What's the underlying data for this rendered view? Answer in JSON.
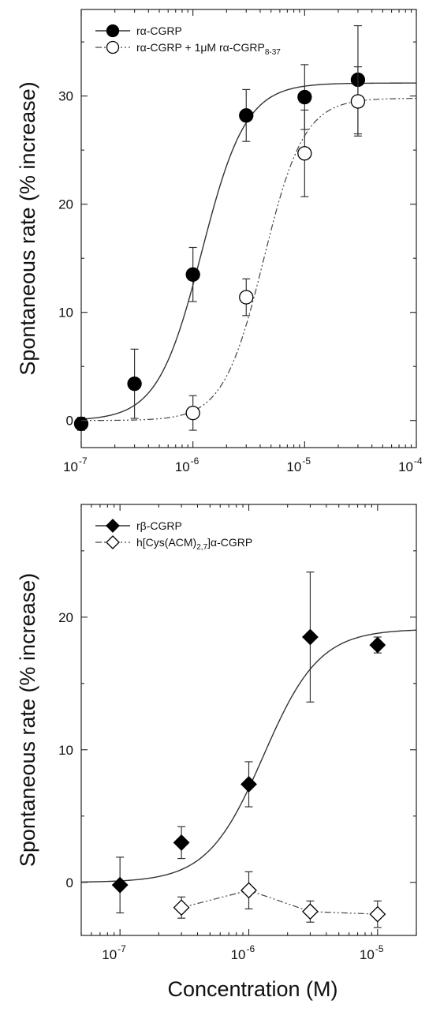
{
  "chart_data": [
    {
      "type": "scatter",
      "title": "",
      "xlabel": "",
      "ylabel": "Spontaneous rate (% increase)",
      "x_scale": "log",
      "xlim": [
        1e-07,
        0.0001
      ],
      "ylim": [
        -2.5,
        38
      ],
      "x_ticks": [
        {
          "value": 1e-07,
          "base": "10",
          "exp": "-7"
        },
        {
          "value": 1e-06,
          "base": "10",
          "exp": "-6"
        },
        {
          "value": 1e-05,
          "base": "10",
          "exp": "-5"
        },
        {
          "value": 0.0001,
          "base": "10",
          "exp": "-4"
        }
      ],
      "y_ticks": [
        0,
        10,
        20,
        30
      ],
      "legend": {
        "position": "top-left",
        "entries": [
          {
            "label": "rα-CGRP",
            "marker": "filled-circle"
          },
          {
            "label": "rα-CGRP + 1μM rα-CGRP",
            "subscript": "8-37",
            "marker": "open-circle"
          }
        ]
      },
      "series": [
        {
          "name": "rα-CGRP",
          "marker": "filled-circle",
          "fit_line": "solid",
          "x": [
            1e-07,
            3e-07,
            1e-06,
            3e-06,
            1e-05,
            3e-05
          ],
          "y": [
            -0.3,
            3.4,
            13.5,
            28.2,
            29.9,
            31.5
          ],
          "err": [
            0.6,
            3.2,
            2.5,
            2.4,
            3.0,
            5.0
          ],
          "fit": {
            "bottom": 0,
            "top": 31.2,
            "ec50": 1.2e-06,
            "hill": 2.2
          }
        },
        {
          "name": "rα-CGRP + 1μM rα-CGRP8-37",
          "marker": "open-circle",
          "fit_line": "dash-dot-dot",
          "x": [
            1e-06,
            3e-06,
            1e-05,
            3e-05
          ],
          "y": [
            0.7,
            11.4,
            24.7,
            29.5
          ],
          "err": [
            1.6,
            1.7,
            4.0,
            3.2
          ],
          "fit": {
            "bottom": 0,
            "top": 29.8,
            "ec50": 4.3e-06,
            "hill": 2.4
          }
        }
      ]
    },
    {
      "type": "scatter",
      "title": "",
      "xlabel": "Concentration (M)",
      "ylabel": "Spontaneous rate (% increase)",
      "x_scale": "log",
      "xlim": [
        5e-08,
        2e-05
      ],
      "ylim": [
        -4,
        28.5
      ],
      "x_ticks": [
        {
          "value": 1e-07,
          "base": "10",
          "exp": "-7"
        },
        {
          "value": 1e-06,
          "base": "10",
          "exp": "-6"
        },
        {
          "value": 1e-05,
          "base": "10",
          "exp": "-5"
        }
      ],
      "y_ticks": [
        0,
        10,
        20
      ],
      "legend": {
        "position": "top-left",
        "entries": [
          {
            "label": "rβ-CGRP",
            "marker": "filled-diamond"
          },
          {
            "label": "h[Cys(ACM)",
            "subscript": "2,7",
            "label_suffix": "]α-CGRP",
            "marker": "open-diamond"
          }
        ]
      },
      "series": [
        {
          "name": "rβ-CGRP",
          "marker": "filled-diamond",
          "fit_line": "solid",
          "x": [
            1e-07,
            3e-07,
            1e-06,
            3e-06,
            1e-05
          ],
          "y": [
            -0.2,
            3.0,
            7.4,
            18.5,
            17.9
          ],
          "err": [
            2.1,
            1.2,
            1.7,
            4.9,
            0.6
          ],
          "fit": {
            "bottom": 0,
            "top": 19.1,
            "ec50": 1.3e-06,
            "hill": 2.0
          }
        },
        {
          "name": "h[Cys(ACM)2,7]α-CGRP",
          "marker": "open-diamond",
          "fit_line": "dash-dot-dot",
          "x": [
            3e-07,
            1e-06,
            3e-06,
            1e-05
          ],
          "y": [
            -1.9,
            -0.6,
            -2.2,
            -2.4
          ],
          "err": [
            0.8,
            1.4,
            0.8,
            1.0
          ]
        }
      ]
    }
  ]
}
